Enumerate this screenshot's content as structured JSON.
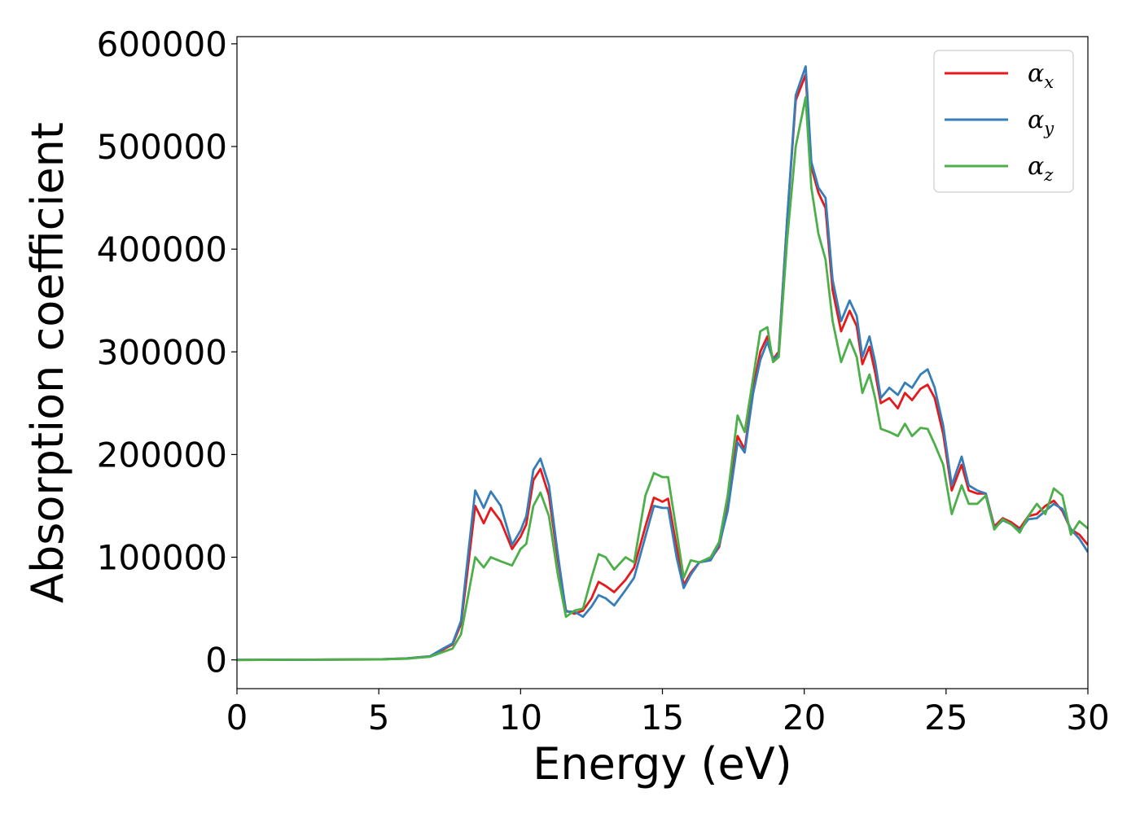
{
  "chart_data": {
    "type": "line",
    "title": "",
    "xlabel": "Energy (eV)",
    "ylabel": "Absorption coefficient",
    "xlim": [
      0,
      30
    ],
    "ylim": [
      -28000,
      607000
    ],
    "xticks": [
      0,
      5,
      10,
      15,
      20,
      25,
      30
    ],
    "yticks": [
      0,
      100000,
      200000,
      300000,
      400000,
      500000,
      600000
    ],
    "grid": false,
    "legend_position": "top-right",
    "series": [
      {
        "name": "α",
        "subscript": "x",
        "color": "#e41a1c",
        "points": [
          [
            0,
            0
          ],
          [
            5,
            500
          ],
          [
            6,
            1500
          ],
          [
            6.8,
            3500
          ],
          [
            7.2,
            9000
          ],
          [
            7.6,
            15000
          ],
          [
            7.9,
            35000
          ],
          [
            8.1,
            80000
          ],
          [
            8.4,
            150000
          ],
          [
            8.7,
            133000
          ],
          [
            8.95,
            148000
          ],
          [
            9.3,
            135000
          ],
          [
            9.7,
            108000
          ],
          [
            10.0,
            120000
          ],
          [
            10.2,
            132000
          ],
          [
            10.45,
            175000
          ],
          [
            10.7,
            186000
          ],
          [
            11.0,
            160000
          ],
          [
            11.3,
            100000
          ],
          [
            11.6,
            48000
          ],
          [
            11.9,
            45000
          ],
          [
            12.2,
            48000
          ],
          [
            12.5,
            60000
          ],
          [
            12.75,
            76000
          ],
          [
            13.0,
            72000
          ],
          [
            13.3,
            66000
          ],
          [
            13.7,
            78000
          ],
          [
            14.0,
            90000
          ],
          [
            14.4,
            130000
          ],
          [
            14.7,
            158000
          ],
          [
            15.0,
            154000
          ],
          [
            15.2,
            157000
          ],
          [
            15.5,
            110000
          ],
          [
            15.75,
            73000
          ],
          [
            16.0,
            85000
          ],
          [
            16.3,
            95000
          ],
          [
            16.7,
            98000
          ],
          [
            17.0,
            110000
          ],
          [
            17.3,
            150000
          ],
          [
            17.65,
            218000
          ],
          [
            17.9,
            205000
          ],
          [
            18.2,
            265000
          ],
          [
            18.45,
            300000
          ],
          [
            18.7,
            315000
          ],
          [
            18.9,
            293000
          ],
          [
            19.1,
            300000
          ],
          [
            19.4,
            430000
          ],
          [
            19.7,
            545000
          ],
          [
            20.05,
            570000
          ],
          [
            20.25,
            480000
          ],
          [
            20.5,
            455000
          ],
          [
            20.75,
            440000
          ],
          [
            21.0,
            360000
          ],
          [
            21.3,
            320000
          ],
          [
            21.6,
            340000
          ],
          [
            21.85,
            325000
          ],
          [
            22.05,
            288000
          ],
          [
            22.3,
            305000
          ],
          [
            22.5,
            280000
          ],
          [
            22.7,
            250000
          ],
          [
            23.0,
            255000
          ],
          [
            23.3,
            245000
          ],
          [
            23.55,
            260000
          ],
          [
            23.8,
            253000
          ],
          [
            24.1,
            264000
          ],
          [
            24.35,
            268000
          ],
          [
            24.6,
            255000
          ],
          [
            24.9,
            220000
          ],
          [
            25.2,
            165000
          ],
          [
            25.55,
            190000
          ],
          [
            25.8,
            165000
          ],
          [
            26.1,
            162000
          ],
          [
            26.4,
            162000
          ],
          [
            26.7,
            130000
          ],
          [
            27.0,
            138000
          ],
          [
            27.3,
            134000
          ],
          [
            27.6,
            128000
          ],
          [
            27.9,
            140000
          ],
          [
            28.2,
            142000
          ],
          [
            28.5,
            150000
          ],
          [
            28.8,
            155000
          ],
          [
            29.1,
            145000
          ],
          [
            29.4,
            127000
          ],
          [
            29.7,
            122000
          ],
          [
            30.0,
            112000
          ]
        ]
      },
      {
        "name": "α",
        "subscript": "y",
        "color": "#377eb8",
        "points": [
          [
            0,
            0
          ],
          [
            5,
            500
          ],
          [
            6,
            1500
          ],
          [
            6.8,
            3500
          ],
          [
            7.2,
            10000
          ],
          [
            7.6,
            16000
          ],
          [
            7.9,
            38000
          ],
          [
            8.1,
            90000
          ],
          [
            8.4,
            165000
          ],
          [
            8.7,
            148000
          ],
          [
            8.95,
            164000
          ],
          [
            9.3,
            150000
          ],
          [
            9.7,
            112000
          ],
          [
            10.0,
            126000
          ],
          [
            10.2,
            140000
          ],
          [
            10.45,
            185000
          ],
          [
            10.7,
            196000
          ],
          [
            11.0,
            170000
          ],
          [
            11.3,
            105000
          ],
          [
            11.6,
            47000
          ],
          [
            11.9,
            47000
          ],
          [
            12.2,
            42000
          ],
          [
            12.5,
            52000
          ],
          [
            12.75,
            63000
          ],
          [
            13.0,
            60000
          ],
          [
            13.3,
            53000
          ],
          [
            13.7,
            68000
          ],
          [
            14.0,
            80000
          ],
          [
            14.4,
            120000
          ],
          [
            14.7,
            150000
          ],
          [
            15.0,
            148000
          ],
          [
            15.2,
            148000
          ],
          [
            15.5,
            100000
          ],
          [
            15.75,
            70000
          ],
          [
            16.0,
            83000
          ],
          [
            16.3,
            95000
          ],
          [
            16.7,
            97000
          ],
          [
            17.0,
            112000
          ],
          [
            17.3,
            145000
          ],
          [
            17.65,
            212000
          ],
          [
            17.9,
            202000
          ],
          [
            18.2,
            260000
          ],
          [
            18.45,
            292000
          ],
          [
            18.7,
            310000
          ],
          [
            18.9,
            292000
          ],
          [
            19.1,
            298000
          ],
          [
            19.4,
            430000
          ],
          [
            19.7,
            550000
          ],
          [
            20.05,
            578000
          ],
          [
            20.25,
            485000
          ],
          [
            20.5,
            460000
          ],
          [
            20.75,
            450000
          ],
          [
            21.0,
            370000
          ],
          [
            21.3,
            330000
          ],
          [
            21.6,
            350000
          ],
          [
            21.85,
            335000
          ],
          [
            22.05,
            295000
          ],
          [
            22.3,
            315000
          ],
          [
            22.5,
            290000
          ],
          [
            22.7,
            255000
          ],
          [
            23.0,
            265000
          ],
          [
            23.3,
            258000
          ],
          [
            23.55,
            270000
          ],
          [
            23.8,
            265000
          ],
          [
            24.1,
            278000
          ],
          [
            24.35,
            283000
          ],
          [
            24.6,
            265000
          ],
          [
            24.9,
            228000
          ],
          [
            25.2,
            170000
          ],
          [
            25.55,
            198000
          ],
          [
            25.8,
            170000
          ],
          [
            26.1,
            165000
          ],
          [
            26.4,
            162000
          ],
          [
            26.7,
            128000
          ],
          [
            27.0,
            136000
          ],
          [
            27.3,
            132000
          ],
          [
            27.6,
            126000
          ],
          [
            27.9,
            137000
          ],
          [
            28.2,
            138000
          ],
          [
            28.5,
            145000
          ],
          [
            28.8,
            152000
          ],
          [
            29.1,
            147000
          ],
          [
            29.4,
            127000
          ],
          [
            29.7,
            118000
          ],
          [
            30.0,
            105000
          ]
        ]
      },
      {
        "name": "α",
        "subscript": "z",
        "color": "#4daf4a",
        "points": [
          [
            0,
            0
          ],
          [
            5,
            500
          ],
          [
            6,
            1200
          ],
          [
            6.8,
            3000
          ],
          [
            7.2,
            7000
          ],
          [
            7.6,
            11000
          ],
          [
            7.9,
            25000
          ],
          [
            8.1,
            55000
          ],
          [
            8.4,
            100000
          ],
          [
            8.7,
            90000
          ],
          [
            8.95,
            100000
          ],
          [
            9.3,
            96000
          ],
          [
            9.7,
            92000
          ],
          [
            10.0,
            108000
          ],
          [
            10.2,
            113000
          ],
          [
            10.45,
            150000
          ],
          [
            10.7,
            163000
          ],
          [
            11.0,
            140000
          ],
          [
            11.3,
            85000
          ],
          [
            11.6,
            42000
          ],
          [
            11.9,
            48000
          ],
          [
            12.2,
            50000
          ],
          [
            12.5,
            80000
          ],
          [
            12.75,
            103000
          ],
          [
            13.0,
            100000
          ],
          [
            13.3,
            88000
          ],
          [
            13.7,
            100000
          ],
          [
            14.0,
            95000
          ],
          [
            14.4,
            160000
          ],
          [
            14.7,
            182000
          ],
          [
            15.0,
            178000
          ],
          [
            15.2,
            178000
          ],
          [
            15.5,
            125000
          ],
          [
            15.75,
            80000
          ],
          [
            16.0,
            97000
          ],
          [
            16.3,
            95000
          ],
          [
            16.7,
            100000
          ],
          [
            17.0,
            115000
          ],
          [
            17.3,
            160000
          ],
          [
            17.65,
            238000
          ],
          [
            17.9,
            222000
          ],
          [
            18.2,
            275000
          ],
          [
            18.45,
            320000
          ],
          [
            18.7,
            324000
          ],
          [
            18.9,
            290000
          ],
          [
            19.1,
            295000
          ],
          [
            19.4,
            410000
          ],
          [
            19.7,
            500000
          ],
          [
            20.05,
            548000
          ],
          [
            20.25,
            460000
          ],
          [
            20.5,
            415000
          ],
          [
            20.75,
            390000
          ],
          [
            21.0,
            330000
          ],
          [
            21.3,
            290000
          ],
          [
            21.6,
            312000
          ],
          [
            21.85,
            295000
          ],
          [
            22.05,
            260000
          ],
          [
            22.3,
            278000
          ],
          [
            22.5,
            255000
          ],
          [
            22.7,
            225000
          ],
          [
            23.0,
            222000
          ],
          [
            23.3,
            218000
          ],
          [
            23.55,
            230000
          ],
          [
            23.8,
            218000
          ],
          [
            24.1,
            226000
          ],
          [
            24.35,
            225000
          ],
          [
            24.6,
            210000
          ],
          [
            24.9,
            190000
          ],
          [
            25.2,
            142000
          ],
          [
            25.55,
            170000
          ],
          [
            25.8,
            152000
          ],
          [
            26.1,
            152000
          ],
          [
            26.4,
            160000
          ],
          [
            26.7,
            127000
          ],
          [
            27.0,
            137000
          ],
          [
            27.3,
            132000
          ],
          [
            27.6,
            124000
          ],
          [
            27.9,
            140000
          ],
          [
            28.2,
            152000
          ],
          [
            28.5,
            142000
          ],
          [
            28.8,
            167000
          ],
          [
            29.1,
            160000
          ],
          [
            29.4,
            122000
          ],
          [
            29.7,
            135000
          ],
          [
            30.0,
            128000
          ]
        ]
      }
    ]
  }
}
